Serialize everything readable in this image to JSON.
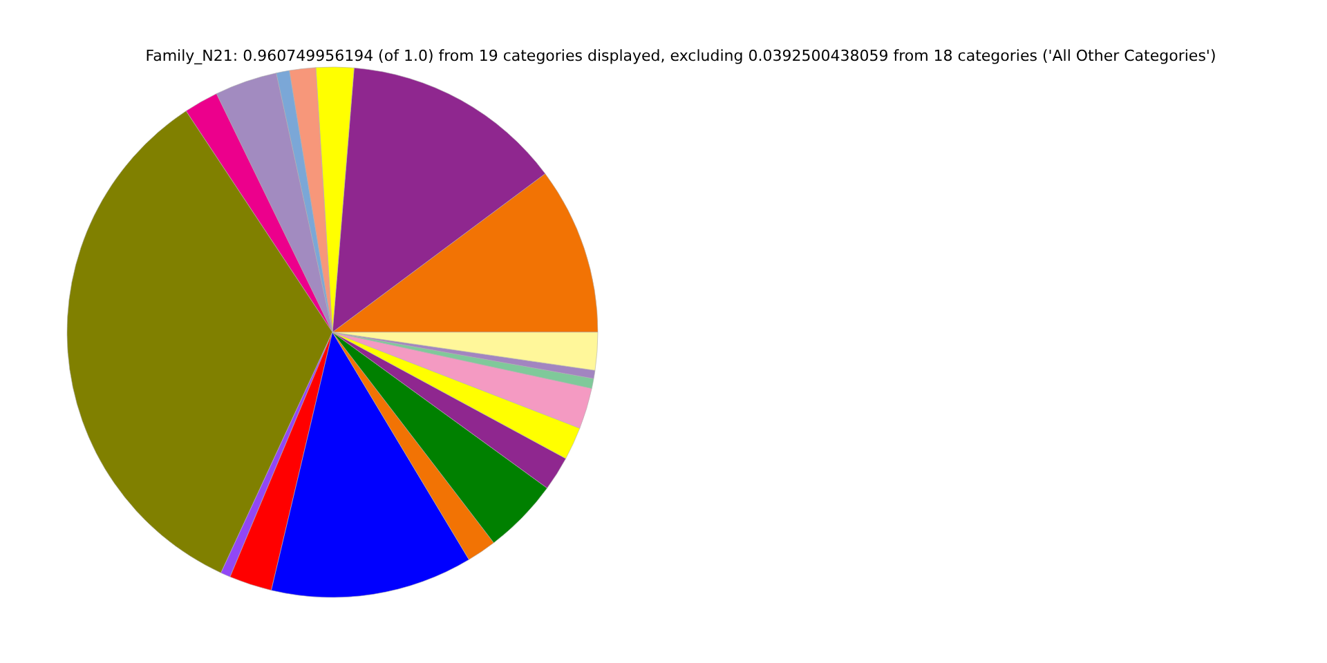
{
  "chart_data": {
    "type": "pie",
    "title": "Family_N21: 0.960749956194 (of 1.0) from 19 categories displayed, excluding 0.0392500438059 from 18 categories ('All Other Categories')",
    "categories": [
      null,
      null,
      null,
      null,
      null,
      null,
      null,
      null,
      null,
      null,
      null,
      null,
      null,
      null,
      null,
      null,
      null,
      null,
      null
    ],
    "values": [
      10.2,
      13.5,
      2.3,
      1.6,
      0.8,
      3.8,
      2.1,
      33.8,
      0.6,
      2.6,
      12.3,
      1.8,
      4.6,
      2.1,
      2.0,
      2.5,
      0.6,
      0.5,
      2.3
    ],
    "colors": [
      "#f27304",
      "#8f278f",
      "#ffff00",
      "#f7977a",
      "#7ba7d7",
      "#a28bc0",
      "#ec008c",
      "#808000",
      "#9147f5",
      "#ff0000",
      "#0000ff",
      "#f27304",
      "#008000",
      "#8f278f",
      "#ffff00",
      "#f49ac2",
      "#7fc99a",
      "#a285c0",
      "#fff79a"
    ]
  }
}
